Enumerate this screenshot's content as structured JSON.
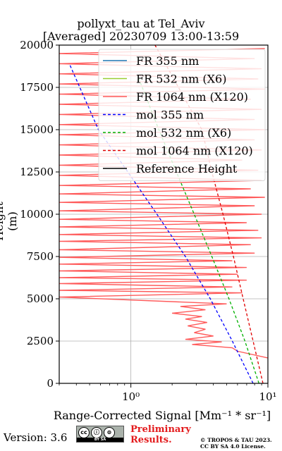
{
  "chart_data": {
    "type": "line",
    "title": [
      "pollyxt_tau at Tel_Aviv",
      "[Averaged] 20230709 13:00-13:59"
    ],
    "xlabel": "Range-Corrected Signal [Mm⁻¹ * sr⁻¹]",
    "ylabel": "Height (m)",
    "xscale": "log",
    "xlim": [
      0.3,
      10
    ],
    "ylim": [
      0,
      20000
    ],
    "xticks": [
      1,
      10
    ],
    "xtick_labels": [
      "10⁰",
      "10¹"
    ],
    "yticks": [
      0,
      2500,
      5000,
      7500,
      10000,
      12500,
      15000,
      17500,
      20000
    ],
    "grid": true,
    "legend_position": "top-right",
    "series": [
      {
        "name": "FR 355 nm",
        "color": "#1f77b4",
        "style": "solid",
        "points": []
      },
      {
        "name": "FR 532 nm (X6)",
        "color": "#9acd32",
        "style": "solid",
        "points": []
      },
      {
        "name": "FR 1064 nm (X120)",
        "color": "#ff5a5a",
        "style": "solid",
        "points": [
          [
            10,
            1500
          ],
          [
            6.0,
            1900
          ],
          [
            5.5,
            2100
          ],
          [
            2.8,
            2300
          ],
          [
            4.6,
            2450
          ],
          [
            2.5,
            2600
          ],
          [
            4.0,
            2800
          ],
          [
            2.9,
            3000
          ],
          [
            3.5,
            3200
          ],
          [
            2.6,
            3400
          ],
          [
            3.6,
            3600
          ],
          [
            2.5,
            3800
          ],
          [
            3.3,
            3950
          ],
          [
            2.0,
            4150
          ],
          [
            3.5,
            4350
          ],
          [
            2.3,
            4550
          ],
          [
            5.0,
            4700
          ],
          [
            0.3,
            5100
          ],
          [
            6.5,
            5350
          ],
          [
            0.3,
            5500
          ],
          [
            5.5,
            5700
          ],
          [
            0.3,
            5900
          ],
          [
            7.0,
            6100
          ],
          [
            0.3,
            6250
          ],
          [
            6.0,
            6450
          ],
          [
            0.3,
            6650
          ],
          [
            7.0,
            6850
          ],
          [
            0.3,
            7050
          ],
          [
            5.5,
            7250
          ],
          [
            0.3,
            7450
          ],
          [
            8.0,
            7700
          ],
          [
            0.3,
            7900
          ],
          [
            7.5,
            8200
          ],
          [
            0.3,
            8400
          ],
          [
            9.0,
            8600
          ],
          [
            0.3,
            8800
          ],
          [
            8.5,
            9050
          ],
          [
            0.3,
            9250
          ],
          [
            7.0,
            9500
          ],
          [
            0.3,
            9700
          ],
          [
            9.0,
            10000
          ],
          [
            0.3,
            10200
          ],
          [
            8.0,
            10500
          ],
          [
            0.3,
            10700
          ],
          [
            9.5,
            11000
          ],
          [
            0.3,
            11200
          ],
          [
            7.5,
            11500
          ],
          [
            0.3,
            11700
          ],
          [
            9.0,
            12000
          ],
          [
            0.3,
            12300
          ],
          [
            8.5,
            12600
          ],
          [
            0.3,
            12900
          ],
          [
            6.5,
            13200
          ],
          [
            0.3,
            13500
          ],
          [
            9.0,
            13800
          ],
          [
            0.3,
            14100
          ],
          [
            8.0,
            14400
          ],
          [
            0.3,
            14700
          ],
          [
            9.5,
            15000
          ],
          [
            0.3,
            15300
          ],
          [
            8.0,
            15600
          ],
          [
            0.3,
            15900
          ],
          [
            9.0,
            16200
          ],
          [
            0.3,
            16500
          ],
          [
            7.5,
            16800
          ],
          [
            0.3,
            17100
          ],
          [
            9.5,
            17400
          ],
          [
            0.3,
            17700
          ],
          [
            8.5,
            18000
          ],
          [
            0.3,
            18300
          ],
          [
            9.0,
            18600
          ],
          [
            0.3,
            18900
          ],
          [
            8.0,
            19200
          ],
          [
            0.3,
            19500
          ],
          [
            9.5,
            19800
          ]
        ]
      },
      {
        "name": "mol 355 nm",
        "color": "#0000ff",
        "style": "dashed",
        "points": [
          [
            7.8,
            0
          ],
          [
            5.5,
            2500
          ],
          [
            3.8,
            5000
          ],
          [
            2.5,
            7500
          ],
          [
            1.55,
            10000
          ],
          [
            0.95,
            12500
          ],
          [
            0.58,
            15000
          ],
          [
            0.36,
            18800
          ]
        ]
      },
      {
        "name": "mol 532 nm (X6)",
        "color": "#00b000",
        "style": "dashed",
        "points": [
          [
            8.6,
            0
          ],
          [
            6.8,
            2500
          ],
          [
            5.2,
            5000
          ],
          [
            3.9,
            7500
          ],
          [
            2.9,
            10000
          ],
          [
            2.15,
            12500
          ],
          [
            1.6,
            15000
          ],
          [
            1.12,
            18200
          ]
        ]
      },
      {
        "name": "mol 1064 nm (X120)",
        "color": "#e00000",
        "style": "dashed",
        "points": [
          [
            9.2,
            0
          ],
          [
            7.8,
            2500
          ],
          [
            6.6,
            5000
          ],
          [
            5.6,
            7500
          ],
          [
            4.7,
            10000
          ],
          [
            3.9,
            12500
          ],
          [
            3.3,
            15000
          ],
          [
            1.5,
            20000
          ]
        ]
      },
      {
        "name": "Reference Height",
        "color": "#000000",
        "style": "solid",
        "points": []
      }
    ]
  },
  "footer": {
    "version": "Version: 3.6",
    "license_badge": {
      "symbols": [
        "cc",
        "ⓘ",
        "⊜"
      ],
      "bar": "BY   SA"
    },
    "preliminary": [
      "Preliminary",
      "Results."
    ],
    "copyright": [
      "© TROPOS & TAU 2023.",
      "CC BY SA 4.0 License."
    ]
  }
}
